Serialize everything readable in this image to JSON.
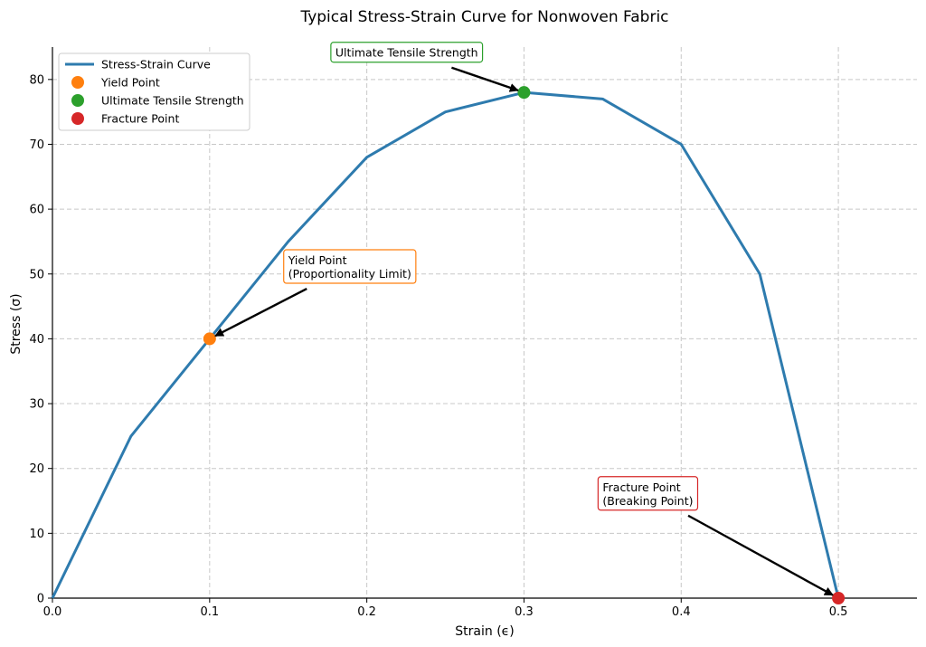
{
  "chart_data": {
    "type": "line",
    "title": "Typical Stress-Strain Curve for Nonwoven Fabric",
    "xlabel": "Strain (ϵ)",
    "ylabel": "Stress (σ)",
    "xlim": [
      0,
      0.55
    ],
    "ylim": [
      0,
      85
    ],
    "xticks": [
      0.0,
      0.1,
      0.2,
      0.3,
      0.4,
      0.5
    ],
    "xtick_labels": [
      "0.0",
      "0.1",
      "0.2",
      "0.3",
      "0.4",
      "0.5"
    ],
    "yticks": [
      0,
      10,
      20,
      30,
      40,
      50,
      60,
      70,
      80
    ],
    "ytick_labels": [
      "0",
      "10",
      "20",
      "30",
      "40",
      "50",
      "60",
      "70",
      "80"
    ],
    "grid": true,
    "legend_position": "top-left",
    "series": [
      {
        "name": "Stress-Strain Curve",
        "color": "#2e7bae",
        "x": [
          0.0,
          0.05,
          0.1,
          0.15,
          0.2,
          0.25,
          0.3,
          0.35,
          0.4,
          0.45,
          0.5
        ],
        "y": [
          0,
          25,
          40,
          55,
          68,
          75,
          78,
          77,
          70,
          50,
          0
        ]
      }
    ],
    "points": [
      {
        "name": "Yield Point",
        "x": 0.1,
        "y": 40,
        "color": "#ff7f0e"
      },
      {
        "name": "Ultimate Tensile Strength",
        "x": 0.3,
        "y": 78,
        "color": "#2ca02c"
      },
      {
        "name": "Fracture Point",
        "x": 0.5,
        "y": 0,
        "color": "#d62728"
      }
    ],
    "annotations": [
      {
        "lines": [
          "Yield Point",
          "(Proportionality Limit)"
        ],
        "target": [
          0.1,
          40
        ],
        "text_at": [
          0.15,
          51.5
        ],
        "border": "#ff7f0e"
      },
      {
        "lines": [
          "Ultimate Tensile Strength"
        ],
        "target": [
          0.3,
          78
        ],
        "text_at": [
          0.18,
          83.5
        ],
        "border": "#2ca02c"
      },
      {
        "lines": [
          "Fracture Point",
          "(Breaking Point)"
        ],
        "target": [
          0.5,
          0
        ],
        "text_at": [
          0.35,
          16.5
        ],
        "border": "#d62728"
      }
    ]
  }
}
